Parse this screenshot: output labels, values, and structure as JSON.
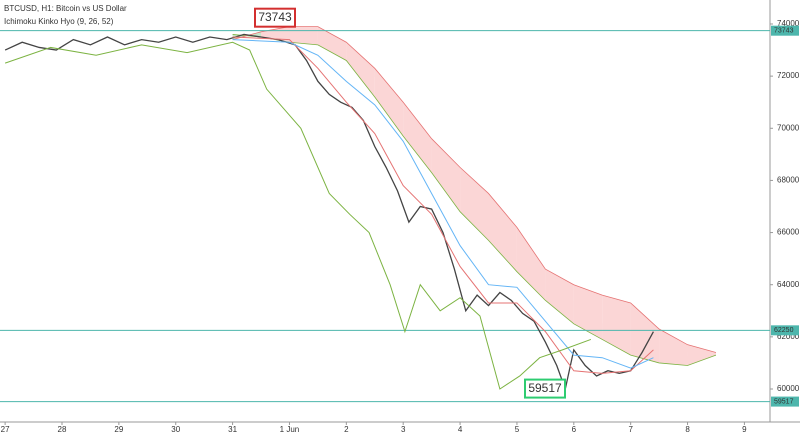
{
  "chart_data": {
    "type": "ichimoku",
    "title": "BTCUSD, H1: Bitcoin vs US Dollar",
    "subtitle": "Ichimoku Kinko Hyo (9, 26, 52)",
    "xlim": [
      -0.09,
      13.45
    ],
    "xticks": [
      {
        "value": 0,
        "label": "27"
      },
      {
        "value": 1,
        "label": "28"
      },
      {
        "value": 2,
        "label": "29"
      },
      {
        "value": 3,
        "label": "30"
      },
      {
        "value": 4,
        "label": "31"
      },
      {
        "value": 5,
        "label": "1 Jun"
      },
      {
        "value": 6,
        "label": "2"
      },
      {
        "value": 7,
        "label": "3"
      },
      {
        "value": 8,
        "label": "4"
      },
      {
        "value": 9,
        "label": "5"
      },
      {
        "value": 10,
        "label": "6"
      },
      {
        "value": 11,
        "label": "7"
      },
      {
        "value": 12,
        "label": "8"
      },
      {
        "value": 13,
        "label": "9"
      }
    ],
    "ylim": [
      58734,
      74920
    ],
    "yticks": [
      60000,
      62000,
      64000,
      66000,
      68000,
      70000,
      72000,
      74000
    ],
    "series": [
      {
        "name": "Price",
        "color": "#444444",
        "x": [
          0,
          0.3,
          0.6,
          0.9,
          1.2,
          1.5,
          1.8,
          2.1,
          2.4,
          2.7,
          3.0,
          3.3,
          3.6,
          3.9,
          4.2,
          4.5,
          4.8,
          5.1,
          5.3,
          5.5,
          5.7,
          5.9,
          6.1,
          6.3,
          6.5,
          6.7,
          6.9,
          7.1,
          7.3,
          7.5,
          7.7,
          7.9,
          8.1,
          8.3,
          8.5,
          8.7,
          8.9,
          9.1,
          9.3,
          9.5,
          9.7,
          9.85,
          10.0,
          10.2,
          10.4,
          10.6,
          10.8,
          11.0,
          11.2,
          11.4
        ],
        "values": [
          73000,
          73300,
          73100,
          73000,
          73400,
          73200,
          73500,
          73200,
          73400,
          73300,
          73500,
          73300,
          73500,
          73400,
          73600,
          73500,
          73400,
          73200,
          72600,
          71800,
          71300,
          71000,
          70800,
          70300,
          69300,
          68500,
          67600,
          66400,
          67000,
          66900,
          66000,
          64600,
          63000,
          63600,
          63200,
          63700,
          63400,
          62900,
          62600,
          61800,
          60900,
          60000,
          61500,
          60900,
          60500,
          60700,
          60600,
          60700,
          61400,
          62200
        ]
      },
      {
        "name": "Tenkan",
        "color": "#e57373",
        "x": [
          4,
          5,
          5.5,
          6,
          6.5,
          7,
          7.5,
          8,
          8.5,
          9,
          9.5,
          10,
          10.5,
          11,
          11.4
        ],
        "values": [
          73500,
          73400,
          72300,
          71000,
          69800,
          67800,
          66700,
          64700,
          63300,
          63300,
          62200,
          60700,
          60600,
          60700,
          61500
        ]
      },
      {
        "name": "Kijun",
        "color": "#64b5f6",
        "x": [
          4,
          5,
          5.5,
          6,
          6.5,
          7,
          7.5,
          8,
          8.5,
          9,
          9.5,
          10,
          10.5,
          11,
          11.4
        ],
        "values": [
          73400,
          73300,
          72800,
          71800,
          70900,
          69500,
          67500,
          65500,
          64000,
          63900,
          62600,
          61300,
          61200,
          60800,
          61200
        ]
      },
      {
        "name": "Chikou",
        "color": "#7cb342",
        "x": [
          0,
          0.8,
          1.6,
          2.4,
          3.2,
          4.0,
          4.3,
          4.6,
          5.2,
          5.7,
          6.06,
          6.4,
          6.77,
          7.03,
          7.3,
          7.65,
          8.0,
          8.35,
          8.7,
          9.05,
          9.4,
          9.8,
          10.3
        ],
        "values": [
          72500,
          73100,
          72800,
          73200,
          72900,
          73300,
          73000,
          71500,
          70000,
          67500,
          66700,
          66000,
          64000,
          62200,
          64000,
          63000,
          63500,
          62800,
          60000,
          60500,
          61200,
          61500,
          61900
        ]
      }
    ],
    "cloud": {
      "x": [
        4,
        4.5,
        5,
        5.5,
        6,
        6.5,
        7,
        7.5,
        8,
        8.5,
        9,
        9.5,
        10,
        10.5,
        11,
        11.5,
        12,
        12.5
      ],
      "span_a": [
        73600,
        73500,
        73300,
        73200,
        72600,
        71200,
        69700,
        68300,
        66800,
        65700,
        64500,
        63400,
        62500,
        61900,
        61300,
        61000,
        60900,
        61300
      ],
      "span_b": [
        73400,
        73700,
        73900,
        73900,
        73300,
        72300,
        71000,
        69600,
        68500,
        67500,
        66200,
        64600,
        64000,
        63600,
        63300,
        62300,
        61700,
        61400
      ],
      "up_color": "#a5d6a7",
      "down_color": "#f8bbbb",
      "a_color": "#7cb342",
      "b_color": "#e57373"
    },
    "levels": [
      73743,
      62250,
      59517
    ],
    "level_color": "#4db6ac"
  }
}
